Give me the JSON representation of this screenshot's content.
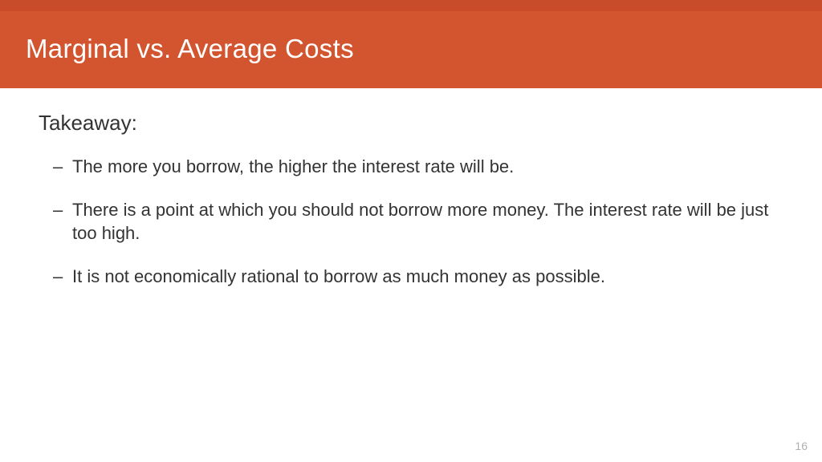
{
  "colors": {
    "stripe": "#c84b2a",
    "header": "#d3552f",
    "text": "#333333",
    "page_num": "#b0b0b0"
  },
  "header": {
    "title": "Marginal vs. Average Costs"
  },
  "content": {
    "subheading": "Takeaway:",
    "bullets": [
      "The more you borrow, the higher the interest rate will be.",
      "There is a point at which you should not borrow more money. The interest rate will be just too high.",
      "It is not economically rational to borrow as much money as possible."
    ]
  },
  "page_number": "16"
}
